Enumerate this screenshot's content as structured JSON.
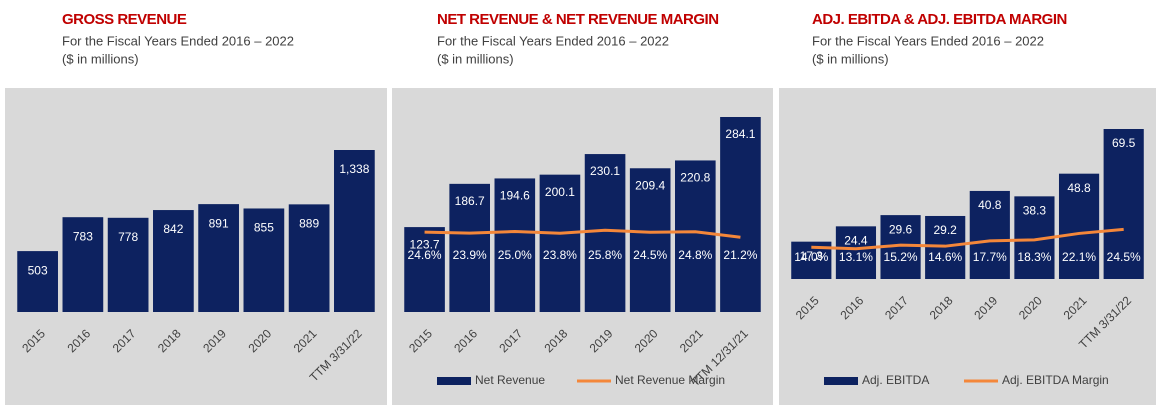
{
  "chart_data": [
    {
      "type": "bar",
      "title": "GROSS REVENUE",
      "subtitle": "For the Fiscal Years Ended 2016 – 2022",
      "unit_note": "($ in millions)",
      "categories": [
        "2015",
        "2016",
        "2017",
        "2018",
        "2019",
        "2020",
        "2021",
        "TTM 3/31/22"
      ],
      "values": [
        503,
        783,
        778,
        842,
        891,
        855,
        889,
        1338
      ],
      "value_labels": [
        "503",
        "783",
        "778",
        "842",
        "891",
        "855",
        "889",
        "1,338"
      ],
      "color": "#0d2260"
    },
    {
      "type": "combo",
      "title": "NET REVENUE & NET REVENUE MARGIN",
      "subtitle": "For the Fiscal Years Ended 2016 – 2022",
      "unit_note": "($ in millions)",
      "categories": [
        "2015",
        "2016",
        "2017",
        "2018",
        "2019",
        "2020",
        "2021",
        "TTM 12/31/21"
      ],
      "series": [
        {
          "name": "Net Revenue",
          "color": "#0d2260",
          "values": [
            123.7,
            186.7,
            194.6,
            200.1,
            230.1,
            209.4,
            220.8,
            284.1
          ]
        },
        {
          "name": "Net Revenue Margin",
          "color": "#f4873a",
          "axis": "y2",
          "values": [
            24.6,
            23.9,
            25.0,
            23.8,
            25.8,
            24.5,
            24.8,
            21.2
          ],
          "value_labels": [
            "24.6%",
            "23.9%",
            "25.0%",
            "23.8%",
            "25.8%",
            "24.5%",
            "24.8%",
            "21.2%"
          ]
        }
      ],
      "legend": "bottom"
    },
    {
      "type": "combo",
      "title": "ADJ. EBITDA & ADJ. EBITDA MARGIN",
      "subtitle": "For the Fiscal Years Ended 2016 – 2022",
      "unit_note": "($ in millions)",
      "categories": [
        "2015",
        "2016",
        "2017",
        "2018",
        "2019",
        "2020",
        "2021",
        "TTM 3/31/22"
      ],
      "series": [
        {
          "name": "Adj. EBITDA",
          "color": "#0d2260",
          "values": [
            17.3,
            24.4,
            29.6,
            29.2,
            40.8,
            38.3,
            48.8,
            69.5
          ]
        },
        {
          "name": "Adj. EBITDA Margin",
          "color": "#f4873a",
          "axis": "y2",
          "values": [
            14.0,
            13.1,
            15.2,
            14.6,
            17.7,
            18.3,
            22.1,
            24.5
          ],
          "value_labels": [
            "14.0%",
            "13.1%",
            "15.2%",
            "14.6%",
            "17.7%",
            "18.3%",
            "22.1%",
            "24.5%"
          ]
        }
      ],
      "legend": "bottom"
    }
  ]
}
